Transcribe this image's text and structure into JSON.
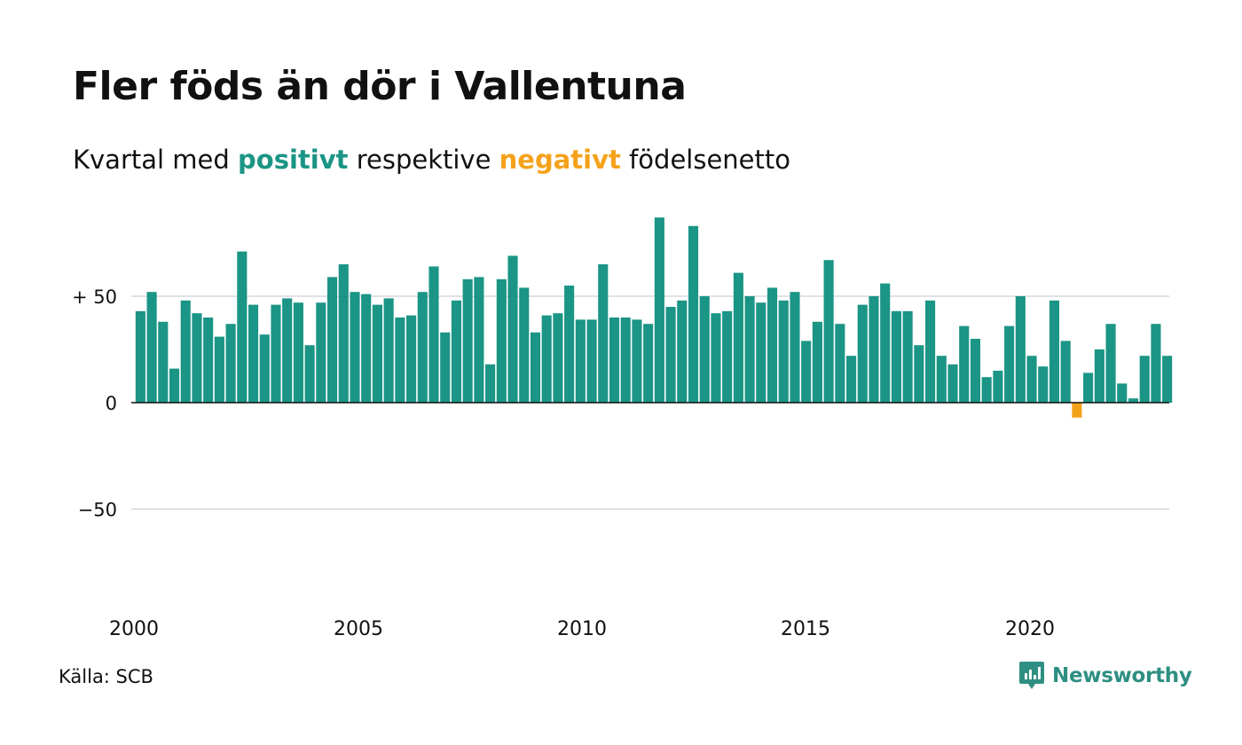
{
  "title": "Fler föds än dör i Vallentuna",
  "subtitle": {
    "before": "Kvartal med",
    "positive": "positivt",
    "middle": "respektive",
    "negative": "negativt",
    "after": "födelsenetto"
  },
  "source": "Källa: SCB",
  "brand": "Newsworthy",
  "colors": {
    "positive": "#1b9585",
    "negative": "#f5a21b",
    "grid": "#e2e2e6",
    "axis": "#111111",
    "brand": "#2e8f82"
  },
  "chart_data": {
    "type": "bar",
    "x_start": "2000 Q1",
    "frequency": "quarterly",
    "values": [
      43,
      52,
      38,
      16,
      48,
      42,
      40,
      31,
      37,
      71,
      46,
      32,
      46,
      49,
      47,
      27,
      47,
      59,
      65,
      52,
      51,
      46,
      49,
      40,
      41,
      52,
      64,
      33,
      48,
      58,
      59,
      18,
      58,
      69,
      54,
      33,
      41,
      42,
      55,
      39,
      39,
      65,
      40,
      40,
      39,
      37,
      87,
      45,
      48,
      83,
      50,
      42,
      43,
      61,
      50,
      47,
      54,
      48,
      52,
      29,
      38,
      67,
      37,
      22,
      46,
      50,
      56,
      43,
      43,
      27,
      48,
      22,
      18,
      36,
      30,
      12,
      15,
      36,
      50,
      22,
      17,
      48,
      29,
      -7,
      14,
      25,
      37,
      9,
      2,
      22,
      37,
      22
    ],
    "x_tick_labels": [
      "2000",
      "2005",
      "2010",
      "2015",
      "2020"
    ],
    "y_ticks": [
      {
        "value": 50,
        "label": "+ 50"
      },
      {
        "value": 0,
        "label": "0"
      },
      {
        "value": -50,
        "label": "−50"
      }
    ],
    "ylim": [
      -100,
      87
    ],
    "grid": true,
    "legend": "subtitle"
  }
}
